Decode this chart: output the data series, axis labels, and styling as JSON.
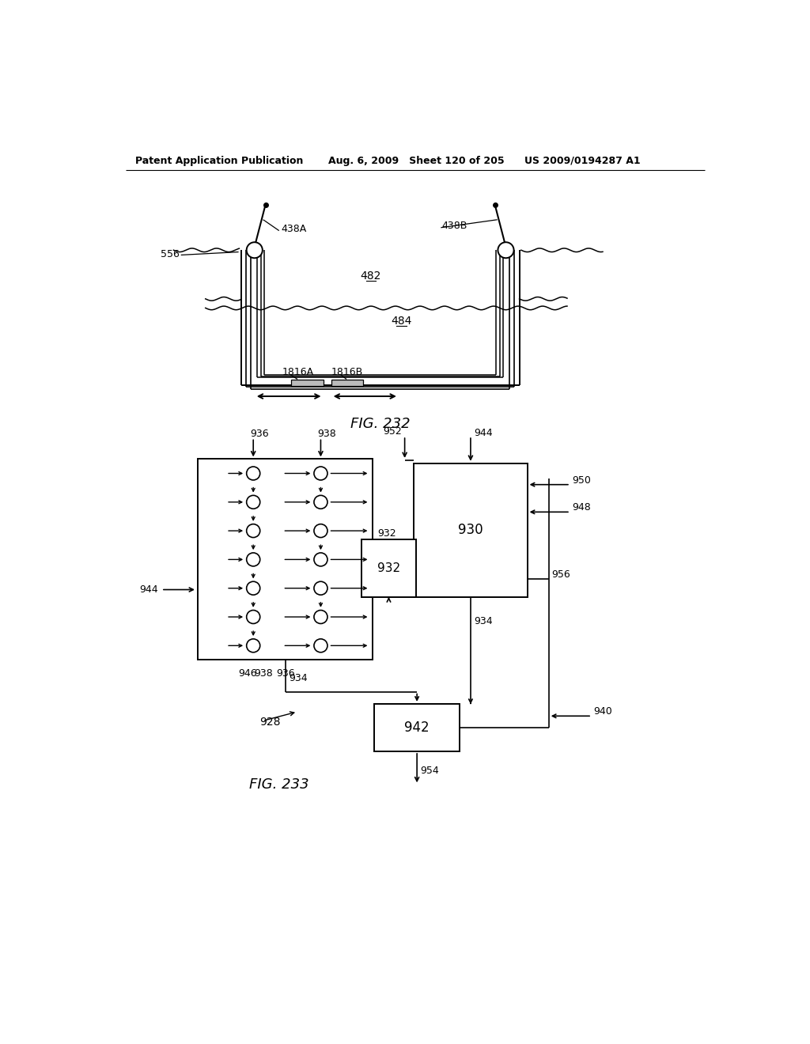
{
  "header_left": "Patent Application Publication",
  "header_middle": "Aug. 6, 2009   Sheet 120 of 205",
  "header_right": "US 2009/0194287 A1",
  "fig232_caption": "FIG. 232",
  "fig233_caption": "FIG. 233",
  "bg_color": "#ffffff",
  "label_482": "482",
  "label_484": "484",
  "label_438A": "438A",
  "label_438B": "438B",
  "label_556": "556",
  "label_1816A": "1816A",
  "label_1816B": "1816B",
  "label_930": "930",
  "label_932": "932",
  "label_934": "934",
  "label_936": "936",
  "label_938": "938",
  "label_940": "940",
  "label_942": "942",
  "label_944": "944",
  "label_946": "946",
  "label_948": "948",
  "label_950": "950",
  "label_952": "952",
  "label_954": "954",
  "label_956": "956",
  "label_928": "928"
}
